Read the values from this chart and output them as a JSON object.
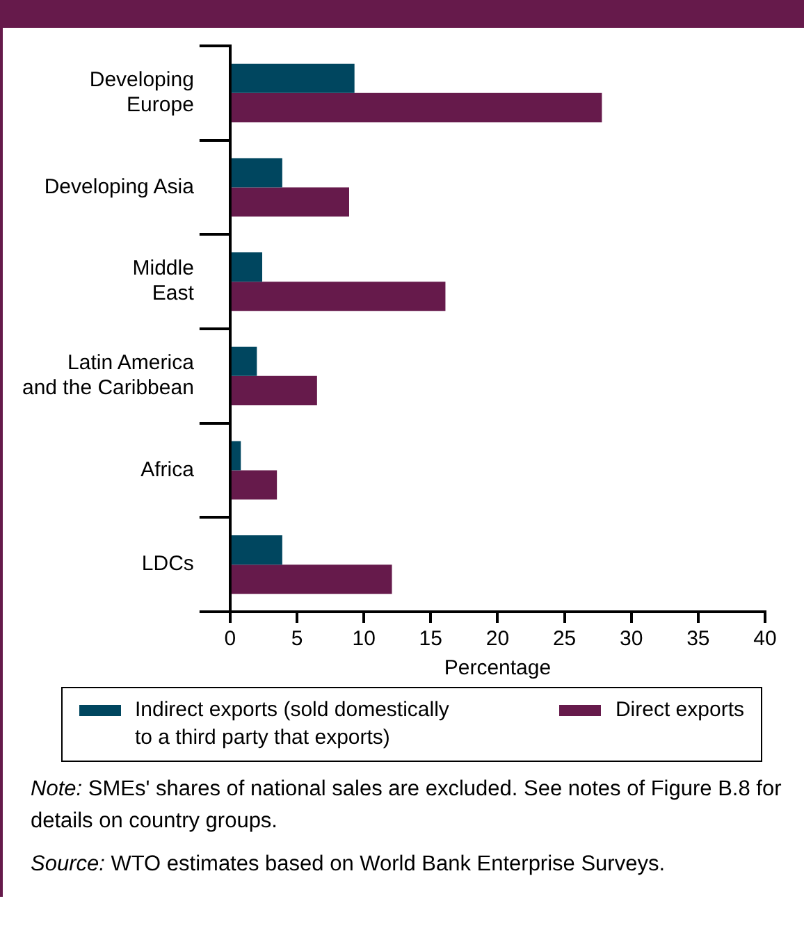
{
  "chart_data": {
    "type": "bar",
    "orientation": "horizontal",
    "categories": [
      "Developing\nEurope",
      "Developing Asia",
      "Middle\nEast",
      "Latin America\nand the Caribbean",
      "Africa",
      "LDCs"
    ],
    "series": [
      {
        "name": "Indirect exports (sold domestically to a third party that exports)",
        "color": "#00465f",
        "values": [
          9.3,
          3.9,
          2.4,
          2.0,
          0.8,
          3.9
        ]
      },
      {
        "name": "Direct exports",
        "color": "#661a4b",
        "values": [
          27.8,
          8.9,
          16.1,
          6.5,
          3.5,
          12.1
        ]
      }
    ],
    "xlabel": "Percentage",
    "xlim": [
      0,
      40
    ],
    "xticks": [
      0,
      5,
      10,
      15,
      20,
      25,
      30,
      35,
      40
    ],
    "grid": false,
    "legend": "bottom",
    "annotations": [
      "Note: SMEs' shares of national sales are excluded. See notes of Figure B.8 for details on country groups.",
      "Source: WTO estimates based on World Bank Enterprise Surveys."
    ]
  }
}
